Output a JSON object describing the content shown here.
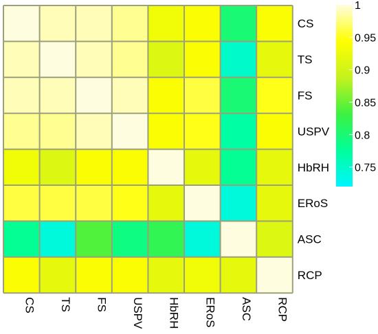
{
  "chart_data": {
    "type": "heatmap",
    "title": "",
    "xlabel": "",
    "ylabel": "",
    "rows": [
      "CS",
      "TS",
      "FS",
      "USPV",
      "HbRH",
      "ERoS",
      "ASC",
      "RCP"
    ],
    "columns": [
      "CS",
      "TS",
      "FS",
      "USPV",
      "HbRH",
      "ERoS",
      "ASC",
      "RCP"
    ],
    "values": [
      [
        1.0,
        0.99,
        0.99,
        0.98,
        0.93,
        0.94,
        0.8,
        0.94
      ],
      [
        0.99,
        1.0,
        0.99,
        0.98,
        0.91,
        0.94,
        0.75,
        0.92
      ],
      [
        0.99,
        0.99,
        1.0,
        0.99,
        0.94,
        0.96,
        0.8,
        0.95
      ],
      [
        0.98,
        0.98,
        0.99,
        1.0,
        0.94,
        0.95,
        0.77,
        0.94
      ],
      [
        0.93,
        0.91,
        0.94,
        0.94,
        1.0,
        0.92,
        0.78,
        0.92
      ],
      [
        0.96,
        0.96,
        0.96,
        0.95,
        0.92,
        1.0,
        0.74,
        0.92
      ],
      [
        0.78,
        0.74,
        0.84,
        0.79,
        0.82,
        0.74,
        1.0,
        0.91
      ],
      [
        0.94,
        0.92,
        0.94,
        0.94,
        0.92,
        0.93,
        0.92,
        1.0
      ]
    ],
    "colorbar": {
      "min": 0.72,
      "max": 1.0,
      "ticks": [
        1,
        0.95,
        0.9,
        0.85,
        0.8,
        0.75
      ],
      "tick_labels": [
        "1",
        "0.95",
        "0.9",
        "0.85",
        "0.8",
        "0.75"
      ],
      "colors": [
        "#00f5ff",
        "#00ff9a",
        "#3df240",
        "#c5f21e",
        "#ffff00",
        "#fffde0"
      ]
    },
    "grid_color": "#9aa07a",
    "legend": "right"
  }
}
